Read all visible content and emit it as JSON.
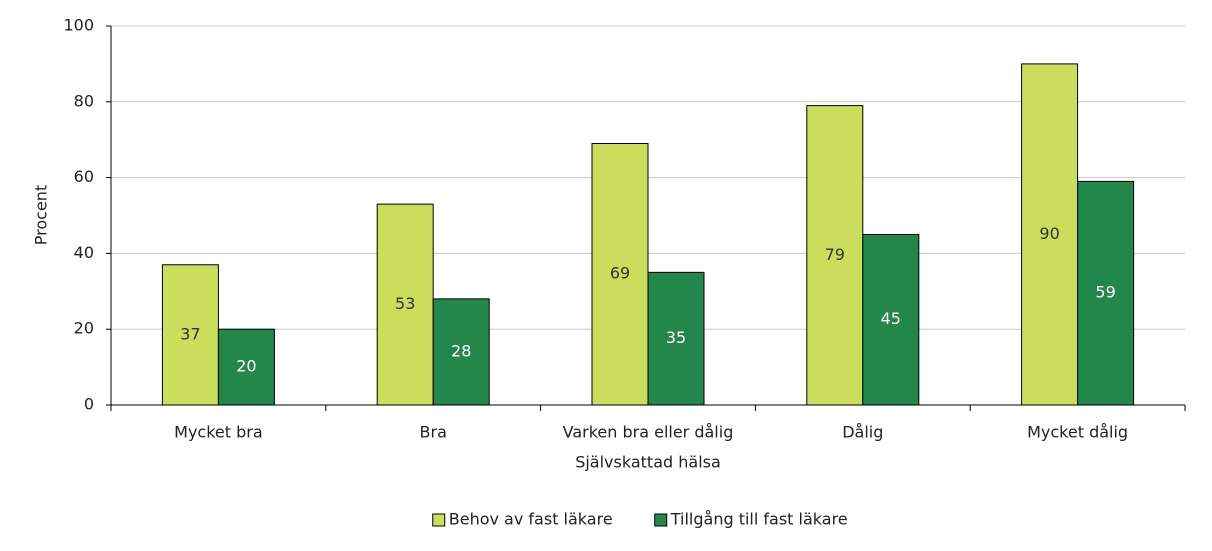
{
  "chart_data": {
    "type": "bar",
    "x_label": "Självskattad hälsa",
    "y_label": "Procent",
    "categories": [
      "Mycket bra",
      "Bra",
      "Varken bra eller dålig",
      "Dålig",
      "Mycket dålig"
    ],
    "series": [
      {
        "name": "Behov av fast läkare",
        "color": "#cade5c",
        "label_color": "#333333",
        "values": [
          37,
          53,
          69,
          79,
          90
        ]
      },
      {
        "name": "Tillgång till fast läkare",
        "color": "#23864a",
        "label_color": "#ffffff",
        "values": [
          20,
          28,
          35,
          45,
          59
        ]
      }
    ],
    "ylim": [
      0,
      100
    ],
    "yticks": [
      0,
      20,
      40,
      60,
      80,
      100
    ],
    "grid": true,
    "legend": "bottom"
  }
}
